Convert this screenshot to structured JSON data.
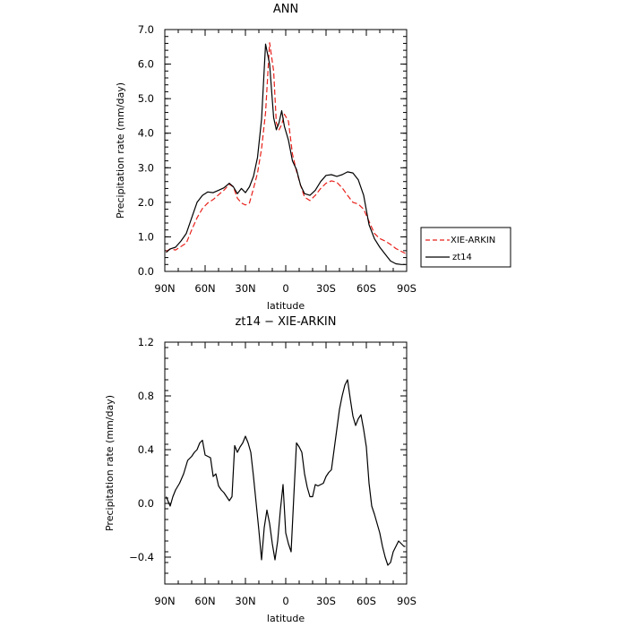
{
  "chart_data": [
    {
      "type": "line",
      "title": "ANN",
      "xlabel": "latitude",
      "ylabel": "Precipitation rate (mm/day)",
      "x_ticks": [
        "90N",
        "60N",
        "30N",
        "0",
        "30S",
        "60S",
        "90S"
      ],
      "y_ticks": [
        "0.0",
        "1.0",
        "2.0",
        "3.0",
        "4.0",
        "5.0",
        "6.0",
        "7.0"
      ],
      "xlim": [
        90,
        -90
      ],
      "ylim": [
        0,
        7
      ],
      "legend_placement": "right",
      "series": [
        {
          "name": "XIE-ARKIN",
          "color": "#e8201a",
          "dash": "dashed",
          "x": [
            89,
            86,
            82,
            78,
            74,
            70,
            66,
            62,
            58,
            54,
            50,
            46,
            42,
            39,
            36,
            33,
            30,
            27,
            24,
            21,
            18,
            15,
            12,
            9,
            7,
            5,
            3,
            1,
            -2,
            -5,
            -8,
            -11,
            -14,
            -18,
            -22,
            -26,
            -30,
            -34,
            -38,
            -42,
            -46,
            -50,
            -54,
            -58,
            -62,
            -66,
            -70,
            -74,
            -78,
            -82,
            -86,
            -89
          ],
          "values": [
            0.58,
            0.65,
            0.62,
            0.72,
            0.82,
            1.2,
            1.55,
            1.82,
            1.98,
            2.08,
            2.22,
            2.35,
            2.52,
            2.45,
            2.12,
            1.98,
            1.92,
            1.98,
            2.4,
            2.85,
            3.55,
            4.6,
            6.62,
            5.8,
            4.3,
            4.1,
            4.25,
            4.55,
            4.35,
            3.4,
            2.9,
            2.5,
            2.15,
            2.05,
            2.2,
            2.4,
            2.55,
            2.62,
            2.58,
            2.42,
            2.2,
            2.0,
            1.95,
            1.8,
            1.45,
            1.1,
            0.95,
            0.88,
            0.78,
            0.66,
            0.58,
            0.52
          ]
        },
        {
          "name": "zt14",
          "color": "#000000",
          "dash": "solid",
          "x": [
            89,
            86,
            82,
            78,
            74,
            70,
            66,
            62,
            58,
            54,
            50,
            46,
            42,
            39,
            36,
            33,
            30,
            27,
            24,
            21,
            18,
            15,
            12,
            9,
            7,
            5,
            3,
            1,
            -2,
            -5,
            -8,
            -11,
            -14,
            -18,
            -22,
            -26,
            -30,
            -34,
            -38,
            -42,
            -46,
            -50,
            -54,
            -58,
            -62,
            -66,
            -70,
            -74,
            -78,
            -82,
            -86,
            -89
          ],
          "values": [
            0.55,
            0.65,
            0.7,
            0.88,
            1.1,
            1.55,
            2.0,
            2.2,
            2.3,
            2.28,
            2.35,
            2.42,
            2.55,
            2.45,
            2.25,
            2.4,
            2.28,
            2.45,
            2.75,
            3.3,
            4.4,
            6.58,
            6.0,
            4.45,
            4.1,
            4.3,
            4.65,
            4.2,
            3.8,
            3.2,
            2.95,
            2.5,
            2.25,
            2.2,
            2.35,
            2.6,
            2.78,
            2.8,
            2.75,
            2.8,
            2.88,
            2.85,
            2.65,
            2.2,
            1.35,
            0.95,
            0.7,
            0.5,
            0.3,
            0.22,
            0.2,
            0.2
          ]
        }
      ]
    },
    {
      "type": "line",
      "title": "zt14 − XIE-ARKIN",
      "xlabel": "latitude",
      "ylabel": "Precipitation rate (mm/day)",
      "x_ticks": [
        "90N",
        "60N",
        "30N",
        "0",
        "30S",
        "60S",
        "90S"
      ],
      "y_ticks": [
        "−0.4",
        "0.0",
        "0.4",
        "0.8",
        "1.2"
      ],
      "xlim": [
        90,
        -90
      ],
      "ylim": [
        -0.6,
        1.2
      ],
      "series": [
        {
          "color": "#000000",
          "dash": "solid",
          "x": [
            89,
            86,
            84,
            82,
            79,
            76,
            73,
            70,
            68,
            66,
            64,
            62,
            60,
            58,
            56,
            54,
            52,
            50,
            48,
            46,
            44,
            42,
            40,
            38,
            36,
            34,
            32,
            30,
            28,
            26,
            24,
            22,
            20,
            18,
            16,
            14,
            12,
            10,
            8,
            6,
            4,
            2,
            0,
            -2,
            -4,
            -6,
            -8,
            -10,
            -12,
            -14,
            -16,
            -18,
            -20,
            -22,
            -24,
            -26,
            -28,
            -30,
            -32,
            -34,
            -36,
            -38,
            -40,
            -42,
            -44,
            -46,
            -48,
            -50,
            -52,
            -54,
            -56,
            -58,
            -60,
            -62,
            -64,
            -66,
            -68,
            -70,
            -72,
            -74,
            -76,
            -78,
            -80,
            -82,
            -84,
            -86,
            -88,
            -89
          ],
          "values": [
            0.05,
            -0.02,
            0.05,
            0.1,
            0.15,
            0.22,
            0.32,
            0.35,
            0.38,
            0.4,
            0.45,
            0.47,
            0.36,
            0.35,
            0.34,
            0.2,
            0.22,
            0.13,
            0.1,
            0.08,
            0.05,
            0.02,
            0.05,
            0.43,
            0.38,
            0.42,
            0.45,
            0.5,
            0.45,
            0.38,
            0.2,
            0.0,
            -0.2,
            -0.42,
            -0.18,
            -0.05,
            -0.15,
            -0.3,
            -0.42,
            -0.28,
            -0.05,
            0.14,
            -0.22,
            -0.3,
            -0.36,
            0.05,
            0.45,
            0.42,
            0.38,
            0.22,
            0.12,
            0.05,
            0.05,
            0.14,
            0.13,
            0.14,
            0.15,
            0.2,
            0.23,
            0.25,
            0.4,
            0.55,
            0.7,
            0.8,
            0.88,
            0.92,
            0.78,
            0.65,
            0.58,
            0.63,
            0.66,
            0.55,
            0.42,
            0.15,
            -0.02,
            -0.08,
            -0.15,
            -0.22,
            -0.32,
            -0.4,
            -0.46,
            -0.44,
            -0.36,
            -0.32,
            -0.28,
            -0.3,
            -0.32,
            -0.32
          ]
        }
      ]
    }
  ]
}
